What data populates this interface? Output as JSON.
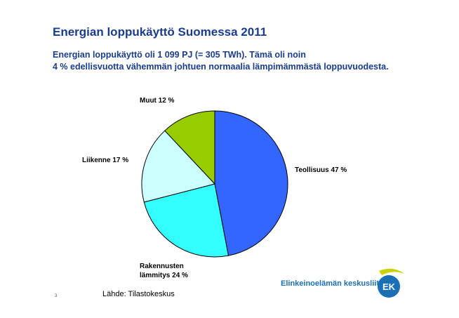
{
  "page": {
    "title": "Energian loppukäyttö Suomessa 2011",
    "subtitle_line1": "Energian loppukäyttö oli 1 099 PJ (= 305  TWh). Tämä oli noin",
    "subtitle_line2": "4 % edellisvuotta vähemmän johtuen normaalia lämpimämmästä loppuvuodesta.",
    "page_number": "3",
    "source": "Lähde: Tilastokeskus"
  },
  "logo": {
    "text": "Elinkeinoelämän keskusliitto",
    "mark": "EK"
  },
  "chart_data": {
    "type": "pie",
    "title": "",
    "slices": [
      {
        "label": "Teollisuus",
        "value": 47,
        "display": "Teollisuus 47 %",
        "color": "#3366ff"
      },
      {
        "label": "Rakennusten lämmitys",
        "value": 24,
        "display_line1": "Rakennusten",
        "display_line2": "lämmitys 24 %",
        "color": "#33ffff"
      },
      {
        "label": "Liikenne",
        "value": 17,
        "display": "Liikenne  17 %",
        "color": "#ccffff"
      },
      {
        "label": "Muut",
        "value": 12,
        "display": "Muut 12 %",
        "color": "#99cc00"
      }
    ]
  }
}
